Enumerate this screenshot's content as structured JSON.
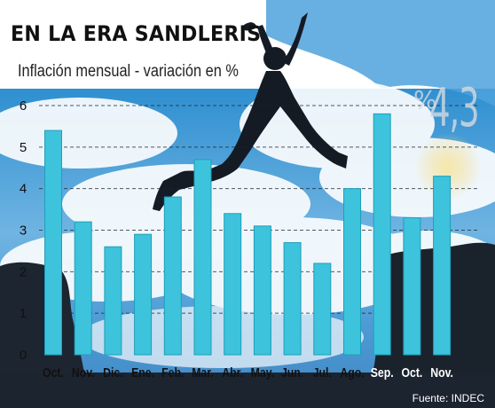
{
  "header": {
    "title": "EN LA ERA SANDLERIS",
    "subtitle": "Inflación mensual - variación en %"
  },
  "highlight": {
    "value": "4,3",
    "unit": "%"
  },
  "footer": {
    "source": "Fuente: INDEC"
  },
  "colors": {
    "bar": "#3dc3dc",
    "bar_edge": "#1e9fba",
    "highlight_label": "#ffffff",
    "label": "#111111"
  },
  "chart_data": {
    "type": "bar",
    "title": "Inflación mensual - variación en %",
    "categories": [
      "Oct.",
      "Nov.",
      "Dic.",
      "Ene.",
      "Feb.",
      "Mar.",
      "Abr.",
      "May.",
      "Jun.",
      "Jul.",
      "Ago.",
      "Sep.",
      "Oct.",
      "Nov."
    ],
    "values": [
      5.4,
      3.2,
      2.6,
      2.9,
      3.8,
      4.7,
      3.4,
      3.1,
      2.7,
      2.2,
      4.0,
      5.8,
      3.3,
      4.3
    ],
    "highlighted_categories": [
      11,
      12,
      13
    ],
    "yticks": [
      0,
      1,
      2,
      3,
      4,
      5,
      6
    ],
    "ylim": [
      0,
      6
    ],
    "grid": "dashed horizontal",
    "legend": "none"
  }
}
